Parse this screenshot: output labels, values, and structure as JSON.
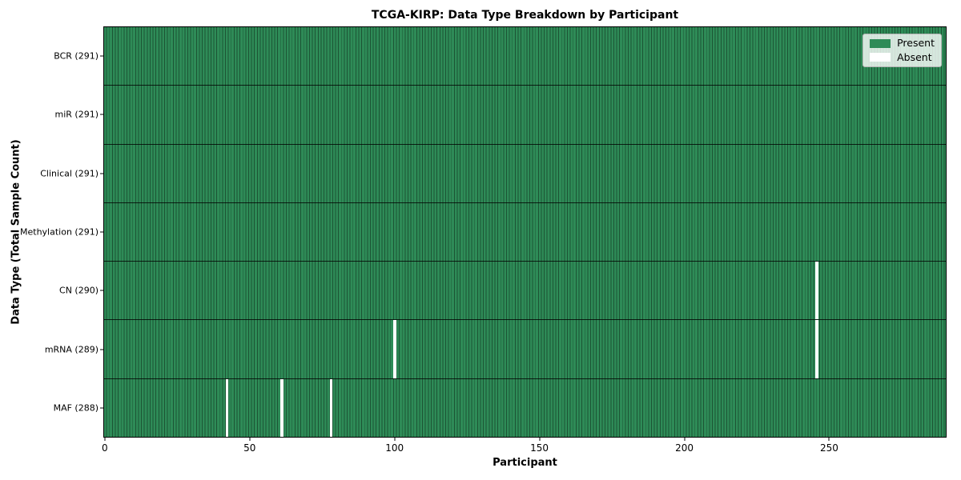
{
  "chart_data": {
    "type": "heatmap",
    "title": "TCGA-KIRP: Data Type Breakdown by Participant",
    "xlabel": "Participant",
    "ylabel": "Data Type (Total Sample Count)",
    "n_participants": 291,
    "xlim": [
      -0.5,
      290.5
    ],
    "x_ticks": [
      0,
      50,
      100,
      150,
      200,
      250
    ],
    "grid": false,
    "rows": [
      {
        "data_type": "BCR",
        "label": "BCR (291)",
        "present_count": 291,
        "absent_participants": []
      },
      {
        "data_type": "miR",
        "label": "miR (291)",
        "present_count": 291,
        "absent_participants": []
      },
      {
        "data_type": "Clinical",
        "label": "Clinical (291)",
        "present_count": 291,
        "absent_participants": []
      },
      {
        "data_type": "Methylation",
        "label": "Methylation (291)",
        "present_count": 291,
        "absent_participants": []
      },
      {
        "data_type": "CN",
        "label": "CN (290)",
        "present_count": 290,
        "absent_participants": [
          246
        ]
      },
      {
        "data_type": "mRNA",
        "label": "mRNA (289)",
        "present_count": 289,
        "absent_participants": [
          100,
          246
        ]
      },
      {
        "data_type": "MAF",
        "label": "MAF (288)",
        "present_count": 288,
        "absent_participants": [
          42,
          61,
          78
        ]
      }
    ],
    "legend": {
      "position": "upper right",
      "entries": [
        {
          "id": "present",
          "label": "Present",
          "color": "#2e8b57"
        },
        {
          "id": "absent",
          "label": "Absent",
          "color": "#ffffff"
        }
      ]
    },
    "colors": {
      "present": "#2e8b57",
      "absent": "#ffffff",
      "bar_edge": "#1c5434",
      "row_separator": "#1a1a1a",
      "spine": "#000000"
    }
  }
}
